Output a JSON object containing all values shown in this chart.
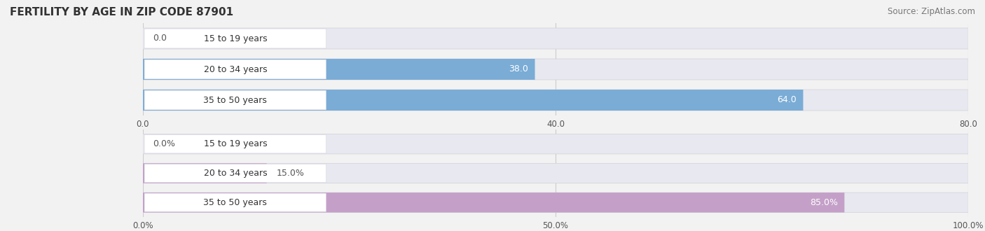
{
  "title": "FERTILITY BY AGE IN ZIP CODE 87901",
  "source": "Source: ZipAtlas.com",
  "top_section": {
    "categories": [
      "15 to 19 years",
      "20 to 34 years",
      "35 to 50 years"
    ],
    "values": [
      0.0,
      38.0,
      64.0
    ],
    "xlim": [
      0,
      80
    ],
    "xticks": [
      0.0,
      40.0,
      80.0
    ],
    "xtick_labels": [
      "0.0",
      "40.0",
      "80.0"
    ],
    "bar_color": "#7aacd6",
    "label_inside_color": "#ffffff",
    "label_outside_color": "#555555",
    "value_threshold_pct": 0.35
  },
  "bottom_section": {
    "categories": [
      "15 to 19 years",
      "20 to 34 years",
      "35 to 50 years"
    ],
    "values": [
      0.0,
      15.0,
      85.0
    ],
    "xlim": [
      0,
      100
    ],
    "xticks": [
      0.0,
      50.0,
      100.0
    ],
    "xtick_labels": [
      "0.0%",
      "50.0%",
      "100.0%"
    ],
    "bar_color": "#c4a0c8",
    "label_inside_color": "#ffffff",
    "label_outside_color": "#555555",
    "value_threshold_pct": 0.35,
    "value_suffix": "%"
  },
  "bg_color": "#f2f2f2",
  "bar_bg_color": "#e8e8f0",
  "bar_row_bg": "#f8f8fa",
  "label_box_color": "#ffffff",
  "label_fontsize": 9,
  "cat_fontsize": 9,
  "title_fontsize": 11,
  "source_fontsize": 8.5,
  "bar_height": 0.68
}
